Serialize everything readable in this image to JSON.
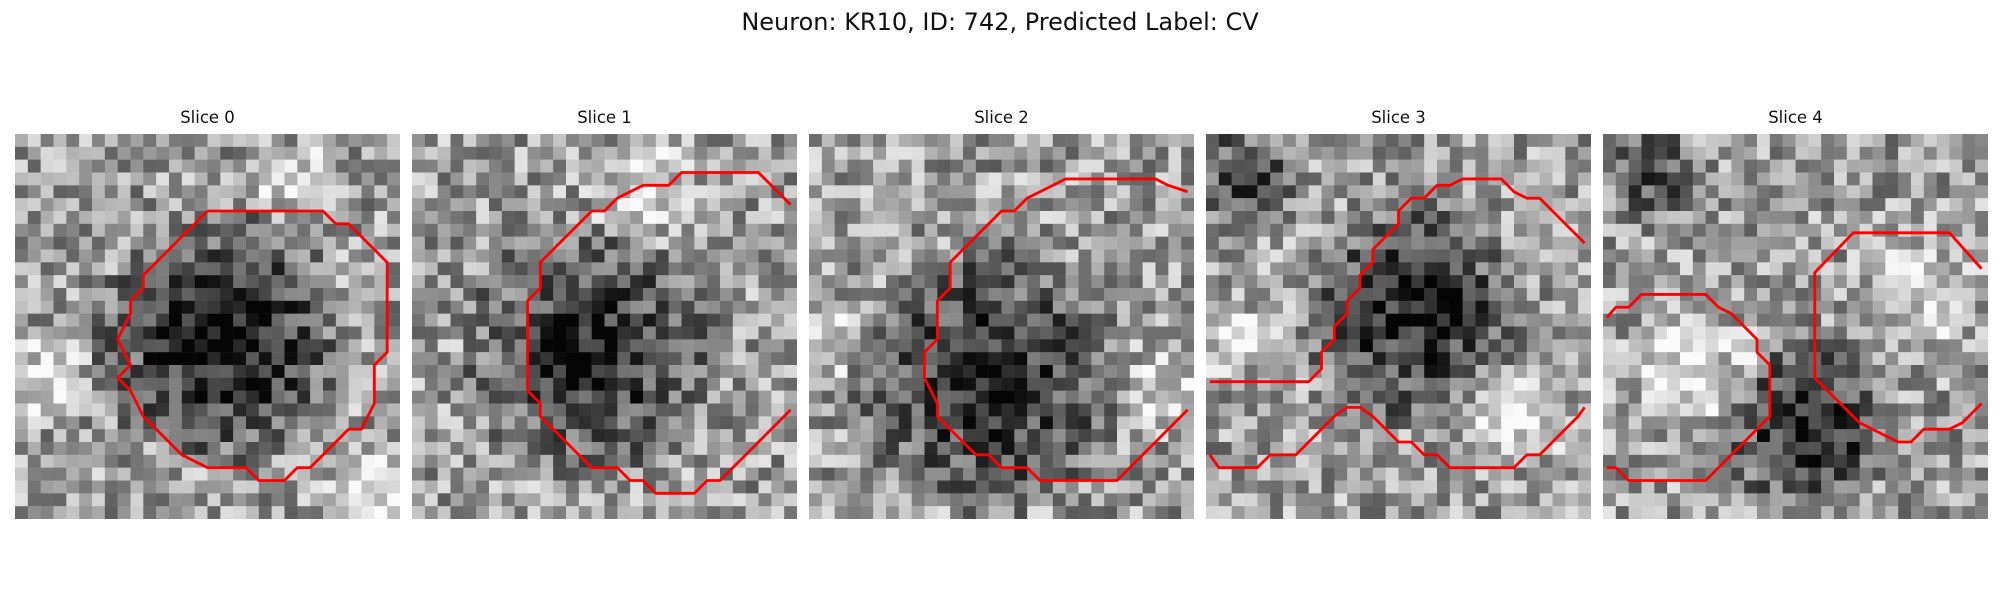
{
  "figure": {
    "title": "Neuron: KR10, ID: 742, Predicted Label: CV"
  },
  "slices": [
    {
      "title": "Slice 0"
    },
    {
      "title": "Slice 1"
    },
    {
      "title": "Slice 2"
    },
    {
      "title": "Slice 3"
    },
    {
      "title": "Slice 4"
    }
  ],
  "colors": {
    "contour": "#ff0000",
    "colormap": "gray"
  }
}
